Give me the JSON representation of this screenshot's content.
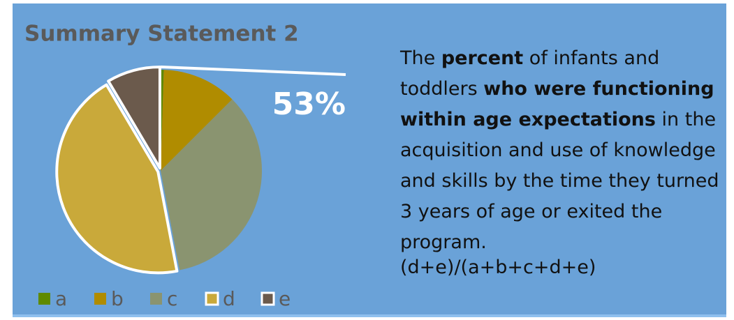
{
  "chart_data": {
    "type": "pie",
    "title": "Summary Statement 2",
    "categories": [
      "a",
      "b",
      "c",
      "d",
      "e"
    ],
    "values": [
      0.5,
      12,
      34.5,
      44.5,
      8.5
    ],
    "colors": [
      "#5f8a00",
      "#b08c00",
      "#8a9470",
      "#c9a93a",
      "#6b5a4c"
    ],
    "highlight": [
      "d",
      "e"
    ],
    "annotation": "53%",
    "description": [
      {
        "text": "The ",
        "bold": false
      },
      {
        "text": "percent",
        "bold": true
      },
      {
        "text": " of infants and toddlers ",
        "bold": false
      },
      {
        "text": "who were functioning within age expectations",
        "bold": true
      },
      {
        "text": " in the acquisition and use of knowledge and skills by the time they turned 3 years of age or exited the program.",
        "bold": false
      }
    ],
    "formula": "(d+e)/(a+b+c+d+e)"
  }
}
